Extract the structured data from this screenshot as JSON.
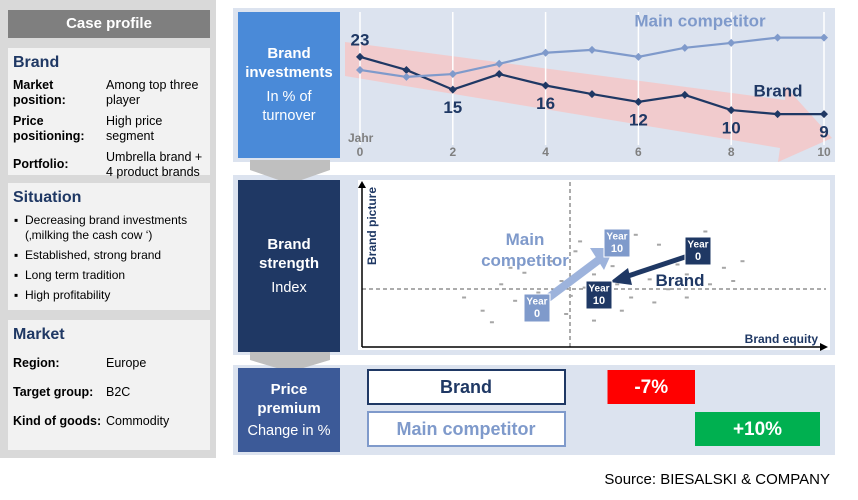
{
  "case_profile": {
    "title": "Case profile",
    "brand": {
      "heading": "Brand",
      "rows": [
        [
          "Market position:",
          "Among top three player"
        ],
        [
          "Price positioning:",
          "High price segment"
        ],
        [
          "Portfolio:",
          "Umbrella brand + 4 product brands"
        ]
      ]
    },
    "situation": {
      "heading": "Situation",
      "items": [
        "Decreasing brand investments (‚milking the cash cow ‘)",
        "Established, strong brand",
        "Long term tradition",
        "High profitability"
      ]
    },
    "market": {
      "heading": "Market",
      "rows": [
        [
          "Region:",
          "Europe"
        ],
        [
          "Target group:",
          "B2C"
        ],
        [
          "Kind of goods:",
          "Commodity"
        ]
      ]
    }
  },
  "chart_data": [
    {
      "type": "line",
      "title": "Brand investments",
      "subtitle": "In % of turnover",
      "xlabel": "Jahr",
      "x": [
        0,
        1,
        2,
        3,
        4,
        5,
        6,
        7,
        8,
        9,
        10
      ],
      "xlim": [
        0,
        10
      ],
      "xticks": [
        0,
        2,
        4,
        6,
        8,
        10
      ],
      "ylim": [
        0,
        32
      ],
      "grid": true,
      "series": [
        {
          "name": "Brand",
          "color": "#1f3864",
          "values": [
            23,
            19.8,
            15,
            18.8,
            16,
            13.9,
            12,
            13.7,
            10,
            9,
            9
          ]
        },
        {
          "name": "Main competitor",
          "color": "#7f9acb",
          "values": [
            19.8,
            18.1,
            18.8,
            21.3,
            24,
            24.7,
            23,
            25.2,
            26.4,
            27.7,
            27.7
          ]
        }
      ]
    },
    {
      "type": "scatter",
      "title": "Brand strength",
      "subtitle": "Index",
      "xlabel": "Brand equity",
      "ylabel": "Brand picture",
      "xlim": [
        0,
        100
      ],
      "ylim": [
        0,
        100
      ],
      "color": "#a6a6a6",
      "x": [
        22,
        26,
        30,
        33,
        35,
        38,
        40,
        41,
        43,
        45,
        46,
        48,
        50,
        52,
        54,
        55,
        57,
        58,
        60,
        62,
        64,
        66,
        68,
        70,
        72,
        75,
        78,
        82,
        28,
        36,
        44,
        50,
        56,
        63,
        70,
        80,
        32,
        47,
        59,
        74
      ],
      "y": [
        30,
        22,
        38,
        28,
        45,
        33,
        26,
        52,
        40,
        31,
        58,
        36,
        44,
        24,
        49,
        38,
        55,
        30,
        46,
        41,
        62,
        35,
        50,
        44,
        57,
        38,
        48,
        52,
        15,
        18,
        20,
        16,
        22,
        27,
        30,
        40,
        48,
        64,
        68,
        70
      ],
      "annotations": {
        "competitor": "Main competitor",
        "brand": "Brand",
        "box_title": "Year",
        "start": "0",
        "end": "10"
      }
    }
  ],
  "price_premium": {
    "title": "Price premium",
    "subtitle": "Change in %",
    "rows": [
      {
        "name": "Brand",
        "value": -7,
        "value_label": "-7%",
        "color": "#ff0000"
      },
      {
        "name": "Main competitor",
        "value": 10,
        "value_label": "+10%",
        "color": "#00b050"
      }
    ]
  },
  "source": "Source: BIESALSKI & COMPANY"
}
